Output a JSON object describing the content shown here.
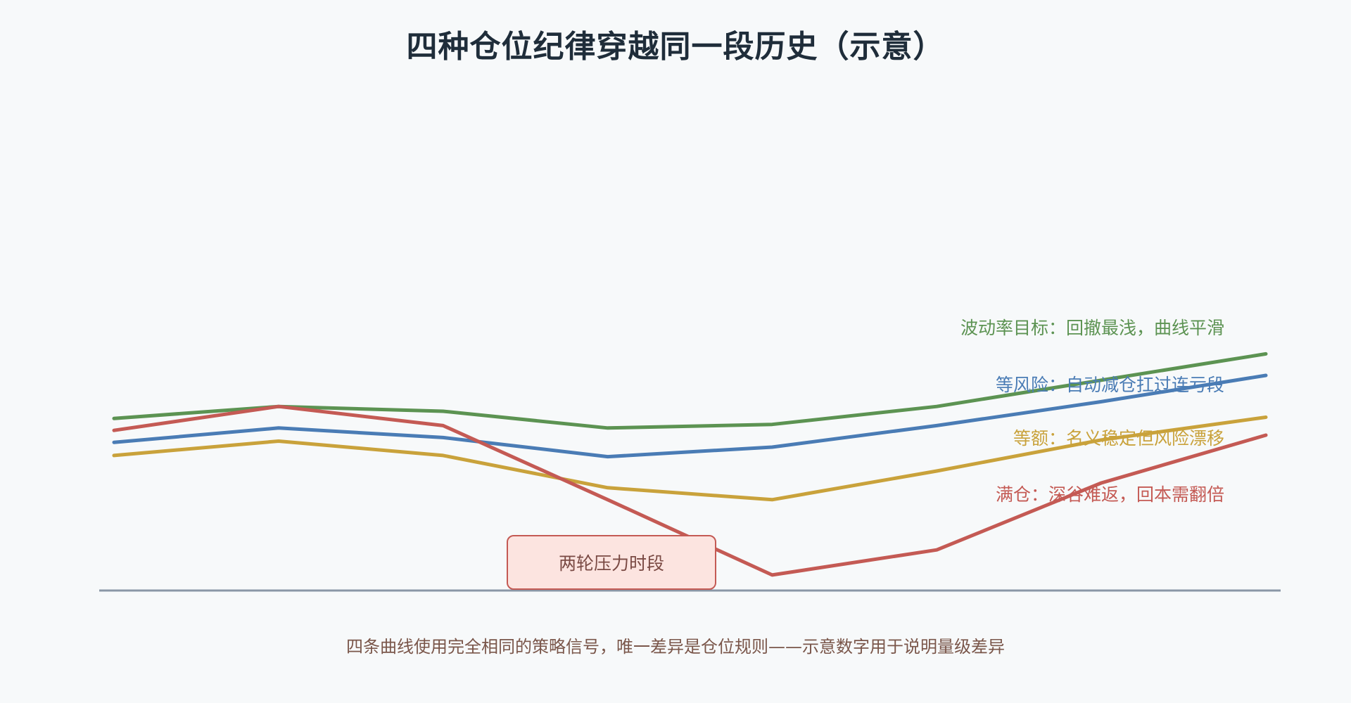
{
  "title": "四种仓位纪律穿越同一段历史（示意）",
  "annotation": "两轮压力时段",
  "footnote": "四条曲线使用完全相同的策略信号，唯一差异是仓位规则——示意数字用于说明量级差异",
  "chart_data": {
    "type": "line",
    "title": "四种仓位纪律穿越同一段历史（示意）",
    "xlabel": "",
    "ylabel": "",
    "grid": false,
    "x": [
      0,
      1,
      2,
      3,
      4,
      5,
      6,
      7
    ],
    "xlim": [
      -0.09,
      7.09
    ],
    "ylim": [
      0,
      100
    ],
    "legend": "inline-right",
    "series": [
      {
        "name": "波动率目标：回撤最浅，曲线平滑",
        "key": "vol_target",
        "color": "#5c9352",
        "values": [
          72,
          77,
          75,
          68,
          69.5,
          77,
          88,
          99
        ]
      },
      {
        "name": "等风险：自动减仓扛过连亏段",
        "key": "equal_risk",
        "color": "#4a7cb5",
        "values": [
          62,
          68,
          64,
          56,
          60,
          69,
          79,
          90
        ]
      },
      {
        "name": "等额：名义稳定但风险漂移",
        "key": "equal_amount",
        "color": "#c9a23b",
        "values": [
          56.5,
          62.5,
          56.5,
          43,
          38,
          50,
          63,
          72.5
        ]
      },
      {
        "name": "满仓：深谷难返，回本需翻倍",
        "key": "full_position",
        "color": "#c45a54",
        "values": [
          67,
          77,
          69,
          38,
          6.5,
          17,
          45,
          65
        ]
      }
    ]
  }
}
